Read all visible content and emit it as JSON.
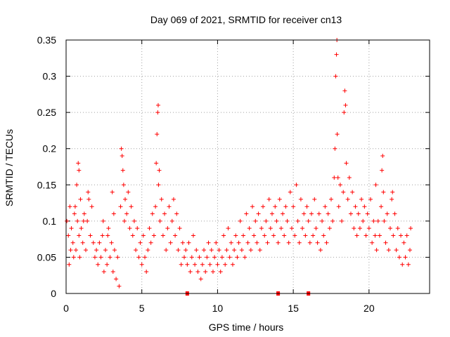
{
  "chart_data": {
    "type": "scatter",
    "title": "Day 069 of 2021, SRMTID for receiver cn13",
    "xlabel": "GPS time / hours",
    "ylabel": "SRMTID / TECUs",
    "xlim": [
      0,
      24
    ],
    "ylim": [
      0,
      0.35
    ],
    "xticks": [
      0,
      5,
      10,
      15,
      20
    ],
    "xtick_labels": [
      "0",
      "5",
      "10",
      "15",
      "20"
    ],
    "yticks": [
      0,
      0.05,
      0.1,
      0.15,
      0.2,
      0.25,
      0.3,
      0.35
    ],
    "ytick_labels": [
      "0",
      "0.05",
      "0.1",
      "0.15",
      "0.2",
      "0.25",
      "0.3",
      "0.35"
    ],
    "grid": true,
    "marker": "+",
    "color": "#ff0000",
    "series": [
      {
        "name": "SRMTID",
        "points": [
          [
            0.05,
            0.1
          ],
          [
            0.15,
            0.08
          ],
          [
            0.25,
            0.12
          ],
          [
            0.35,
            0.09
          ],
          [
            0.45,
            0.07
          ],
          [
            0.55,
            0.11
          ],
          [
            0.65,
            0.06
          ],
          [
            0.75,
            0.1
          ],
          [
            0.85,
            0.08
          ],
          [
            0.95,
            0.13
          ],
          [
            1.0,
            0.09
          ],
          [
            1.1,
            0.07
          ],
          [
            1.2,
            0.11
          ],
          [
            1.3,
            0.06
          ],
          [
            1.4,
            0.1
          ],
          [
            1.5,
            0.13
          ],
          [
            1.6,
            0.08
          ],
          [
            1.7,
            0.12
          ],
          [
            1.8,
            0.07
          ],
          [
            1.9,
            0.05
          ],
          [
            0.3,
            0.06
          ],
          [
            0.5,
            0.05
          ],
          [
            0.7,
            0.15
          ],
          [
            0.8,
            0.18
          ],
          [
            0.85,
            0.17
          ],
          [
            0.2,
            0.04
          ],
          [
            0.6,
            0.12
          ],
          [
            0.9,
            0.05
          ],
          [
            1.15,
            0.1
          ],
          [
            1.45,
            0.14
          ],
          [
            2.0,
            0.06
          ],
          [
            2.1,
            0.04
          ],
          [
            2.2,
            0.07
          ],
          [
            2.3,
            0.05
          ],
          [
            2.4,
            0.08
          ],
          [
            2.5,
            0.03
          ],
          [
            2.6,
            0.06
          ],
          [
            2.7,
            0.04
          ],
          [
            2.8,
            0.09
          ],
          [
            2.9,
            0.05
          ],
          [
            3.0,
            0.07
          ],
          [
            3.1,
            0.03
          ],
          [
            3.2,
            0.06
          ],
          [
            3.3,
            0.02
          ],
          [
            3.4,
            0.05
          ],
          [
            3.5,
            0.01
          ],
          [
            3.05,
            0.14
          ],
          [
            3.15,
            0.11
          ],
          [
            2.45,
            0.1
          ],
          [
            2.75,
            0.08
          ],
          [
            3.6,
            0.12
          ],
          [
            3.65,
            0.2
          ],
          [
            3.7,
            0.19
          ],
          [
            3.75,
            0.17
          ],
          [
            3.8,
            0.15
          ],
          [
            3.85,
            0.1
          ],
          [
            3.9,
            0.13
          ],
          [
            4.0,
            0.11
          ],
          [
            4.1,
            0.14
          ],
          [
            4.2,
            0.09
          ],
          [
            4.3,
            0.12
          ],
          [
            4.4,
            0.08
          ],
          [
            4.5,
            0.1
          ],
          [
            4.6,
            0.06
          ],
          [
            4.7,
            0.09
          ],
          [
            4.8,
            0.05
          ],
          [
            4.9,
            0.07
          ],
          [
            5.0,
            0.04
          ],
          [
            5.1,
            0.08
          ],
          [
            5.2,
            0.05
          ],
          [
            5.3,
            0.03
          ],
          [
            5.4,
            0.06
          ],
          [
            5.5,
            0.09
          ],
          [
            5.6,
            0.07
          ],
          [
            5.7,
            0.11
          ],
          [
            5.8,
            0.08
          ],
          [
            5.9,
            0.12
          ],
          [
            5.95,
            0.18
          ],
          [
            6.0,
            0.22
          ],
          [
            6.05,
            0.25
          ],
          [
            6.08,
            0.26
          ],
          [
            6.1,
            0.15
          ],
          [
            6.15,
            0.17
          ],
          [
            6.2,
            0.1
          ],
          [
            6.3,
            0.13
          ],
          [
            6.4,
            0.08
          ],
          [
            6.5,
            0.11
          ],
          [
            6.6,
            0.06
          ],
          [
            6.7,
            0.09
          ],
          [
            6.8,
            0.12
          ],
          [
            6.9,
            0.07
          ],
          [
            7.0,
            0.1
          ],
          [
            7.1,
            0.13
          ],
          [
            7.2,
            0.08
          ],
          [
            7.3,
            0.11
          ],
          [
            7.4,
            0.06
          ],
          [
            7.5,
            0.09
          ],
          [
            7.6,
            0.04
          ],
          [
            7.7,
            0.07
          ],
          [
            7.8,
            0.05
          ],
          [
            7.9,
            0.06
          ],
          [
            8.0,
            0.04
          ],
          [
            8.1,
            0.07
          ],
          [
            8.2,
            0.03
          ],
          [
            8.3,
            0.05
          ],
          [
            8.4,
            0.08
          ],
          [
            8.5,
            0.04
          ],
          [
            8.6,
            0.06
          ],
          [
            8.7,
            0.03
          ],
          [
            8.8,
            0.05
          ],
          [
            8.9,
            0.02
          ],
          [
            9.0,
            0.04
          ],
          [
            9.1,
            0.06
          ],
          [
            9.2,
            0.03
          ],
          [
            9.3,
            0.05
          ],
          [
            9.4,
            0.07
          ],
          [
            9.5,
            0.04
          ],
          [
            9.6,
            0.06
          ],
          [
            9.7,
            0.03
          ],
          [
            9.8,
            0.05
          ],
          [
            9.9,
            0.07
          ],
          [
            10.0,
            0.04
          ],
          [
            10.1,
            0.06
          ],
          [
            10.2,
            0.03
          ],
          [
            10.3,
            0.05
          ],
          [
            10.4,
            0.08
          ],
          [
            10.5,
            0.04
          ],
          [
            10.6,
            0.06
          ],
          [
            10.7,
            0.09
          ],
          [
            10.8,
            0.05
          ],
          [
            10.9,
            0.07
          ],
          [
            11.0,
            0.04
          ],
          [
            11.1,
            0.06
          ],
          [
            11.2,
            0.08
          ],
          [
            11.3,
            0.05
          ],
          [
            11.4,
            0.07
          ],
          [
            11.5,
            0.1
          ],
          [
            11.6,
            0.06
          ],
          [
            11.7,
            0.08
          ],
          [
            11.8,
            0.05
          ],
          [
            11.9,
            0.11
          ],
          [
            12.0,
            0.07
          ],
          [
            12.1,
            0.09
          ],
          [
            12.2,
            0.06
          ],
          [
            12.3,
            0.12
          ],
          [
            12.4,
            0.08
          ],
          [
            12.5,
            0.1
          ],
          [
            12.6,
            0.07
          ],
          [
            12.7,
            0.11
          ],
          [
            12.8,
            0.06
          ],
          [
            12.9,
            0.09
          ],
          [
            13.0,
            0.12
          ],
          [
            13.1,
            0.08
          ],
          [
            13.2,
            0.1
          ],
          [
            13.3,
            0.07
          ],
          [
            13.4,
            0.13
          ],
          [
            13.5,
            0.09
          ],
          [
            13.6,
            0.11
          ],
          [
            13.7,
            0.08
          ],
          [
            13.8,
            0.12
          ],
          [
            13.9,
            0.1
          ],
          [
            14.0,
            0.07
          ],
          [
            14.1,
            0.13
          ],
          [
            14.2,
            0.09
          ],
          [
            14.3,
            0.11
          ],
          [
            14.4,
            0.08
          ],
          [
            14.5,
            0.12
          ],
          [
            14.6,
            0.1
          ],
          [
            14.7,
            0.07
          ],
          [
            14.8,
            0.14
          ],
          [
            14.9,
            0.09
          ],
          [
            15.0,
            0.12
          ],
          [
            15.1,
            0.08
          ],
          [
            15.2,
            0.15
          ],
          [
            15.3,
            0.1
          ],
          [
            15.4,
            0.07
          ],
          [
            15.5,
            0.13
          ],
          [
            15.6,
            0.09
          ],
          [
            15.7,
            0.11
          ],
          [
            15.8,
            0.08
          ],
          [
            15.9,
            0.12
          ],
          [
            16.0,
            0.1
          ],
          [
            16.1,
            0.07
          ],
          [
            16.2,
            0.11
          ],
          [
            16.3,
            0.08
          ],
          [
            16.4,
            0.13
          ],
          [
            16.5,
            0.09
          ],
          [
            16.6,
            0.07
          ],
          [
            16.7,
            0.11
          ],
          [
            16.8,
            0.06
          ],
          [
            16.9,
            0.1
          ],
          [
            17.0,
            0.08
          ],
          [
            17.1,
            0.12
          ],
          [
            17.2,
            0.07
          ],
          [
            17.3,
            0.11
          ],
          [
            17.4,
            0.09
          ],
          [
            17.5,
            0.13
          ],
          [
            17.6,
            0.1
          ],
          [
            17.7,
            0.16
          ],
          [
            17.75,
            0.2
          ],
          [
            17.8,
            0.3
          ],
          [
            17.85,
            0.33
          ],
          [
            17.88,
            0.35
          ],
          [
            17.9,
            0.22
          ],
          [
            17.95,
            0.16
          ],
          [
            18.0,
            0.12
          ],
          [
            18.1,
            0.15
          ],
          [
            18.2,
            0.1
          ],
          [
            18.3,
            0.14
          ],
          [
            18.35,
            0.25
          ],
          [
            18.4,
            0.28
          ],
          [
            18.45,
            0.26
          ],
          [
            18.5,
            0.18
          ],
          [
            18.6,
            0.13
          ],
          [
            18.7,
            0.16
          ],
          [
            18.8,
            0.11
          ],
          [
            18.9,
            0.14
          ],
          [
            19.0,
            0.09
          ],
          [
            19.1,
            0.12
          ],
          [
            19.2,
            0.08
          ],
          [
            19.3,
            0.11
          ],
          [
            19.4,
            0.09
          ],
          [
            19.5,
            0.13
          ],
          [
            19.6,
            0.1
          ],
          [
            19.7,
            0.12
          ],
          [
            19.8,
            0.08
          ],
          [
            19.9,
            0.11
          ],
          [
            20.0,
            0.09
          ],
          [
            20.1,
            0.13
          ],
          [
            20.2,
            0.07
          ],
          [
            20.3,
            0.1
          ],
          [
            20.4,
            0.08
          ],
          [
            20.5,
            0.06
          ],
          [
            20.6,
            0.1
          ],
          [
            20.7,
            0.08
          ],
          [
            20.8,
            0.12
          ],
          [
            20.85,
            0.17
          ],
          [
            20.9,
            0.19
          ],
          [
            20.95,
            0.14
          ],
          [
            21.0,
            0.1
          ],
          [
            21.1,
            0.07
          ],
          [
            21.2,
            0.11
          ],
          [
            21.3,
            0.06
          ],
          [
            21.4,
            0.09
          ],
          [
            21.5,
            0.13
          ],
          [
            21.6,
            0.08
          ],
          [
            21.7,
            0.11
          ],
          [
            21.8,
            0.06
          ],
          [
            21.9,
            0.09
          ],
          [
            22.0,
            0.05
          ],
          [
            22.1,
            0.08
          ],
          [
            22.2,
            0.04
          ],
          [
            22.3,
            0.07
          ],
          [
            22.4,
            0.05
          ],
          [
            22.5,
            0.08
          ],
          [
            22.6,
            0.04
          ],
          [
            22.7,
            0.06
          ],
          [
            22.75,
            0.09
          ],
          [
            21.55,
            0.14
          ],
          [
            20.45,
            0.15
          ]
        ]
      }
    ],
    "gap_markers_x": [
      8,
      14,
      16
    ]
  }
}
